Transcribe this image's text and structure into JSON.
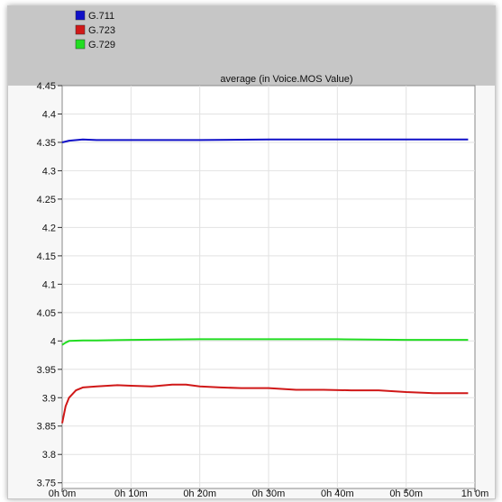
{
  "chart_data": {
    "type": "line",
    "title": "average (in Voice.MOS Value)",
    "xlabel": "",
    "ylabel": "",
    "x_tick_labels": [
      "0h 0m",
      "0h 10m",
      "0h 20m",
      "0h 30m",
      "0h 40m",
      "0h 50m",
      "1h 0m"
    ],
    "xlim": [
      0,
      60
    ],
    "ylim": [
      3.74,
      4.45
    ],
    "y_ticks": [
      3.75,
      3.8,
      3.85,
      3.9,
      3.95,
      4,
      4.05,
      4.1,
      4.15,
      4.2,
      4.25,
      4.3,
      4.35,
      4.4,
      4.45
    ],
    "y_tick_labels": [
      "3.75",
      "3.8",
      "3.85",
      "3.9",
      "3.95",
      "4",
      "4.05",
      "4.1",
      "4.15",
      "4.2",
      "4.25",
      "4.3",
      "4.35",
      "4.4",
      "4.45"
    ],
    "grid": true,
    "legend_position": "top-left",
    "series": [
      {
        "name": "G.711",
        "color": "#1010c8",
        "x": [
          0,
          1,
          3,
          5,
          10,
          20,
          30,
          40,
          50,
          59
        ],
        "y": [
          4.35,
          4.353,
          4.355,
          4.354,
          4.354,
          4.354,
          4.355,
          4.355,
          4.355,
          4.355
        ]
      },
      {
        "name": "G.723",
        "color": "#d01818",
        "x": [
          0,
          0.5,
          1,
          2,
          3,
          5,
          8,
          10,
          13,
          16,
          18,
          20,
          23,
          26,
          30,
          34,
          38,
          42,
          46,
          50,
          54,
          59
        ],
        "y": [
          3.855,
          3.885,
          3.9,
          3.913,
          3.918,
          3.92,
          3.922,
          3.921,
          3.92,
          3.923,
          3.923,
          3.92,
          3.918,
          3.917,
          3.917,
          3.914,
          3.914,
          3.913,
          3.913,
          3.91,
          3.908,
          3.908
        ]
      },
      {
        "name": "G.729",
        "color": "#22dd22",
        "x": [
          0,
          0.5,
          1,
          3,
          5,
          10,
          20,
          30,
          40,
          50,
          59
        ],
        "y": [
          3.993,
          3.997,
          4.0,
          4.001,
          4.001,
          4.002,
          4.003,
          4.003,
          4.003,
          4.002,
          4.002
        ]
      }
    ]
  }
}
